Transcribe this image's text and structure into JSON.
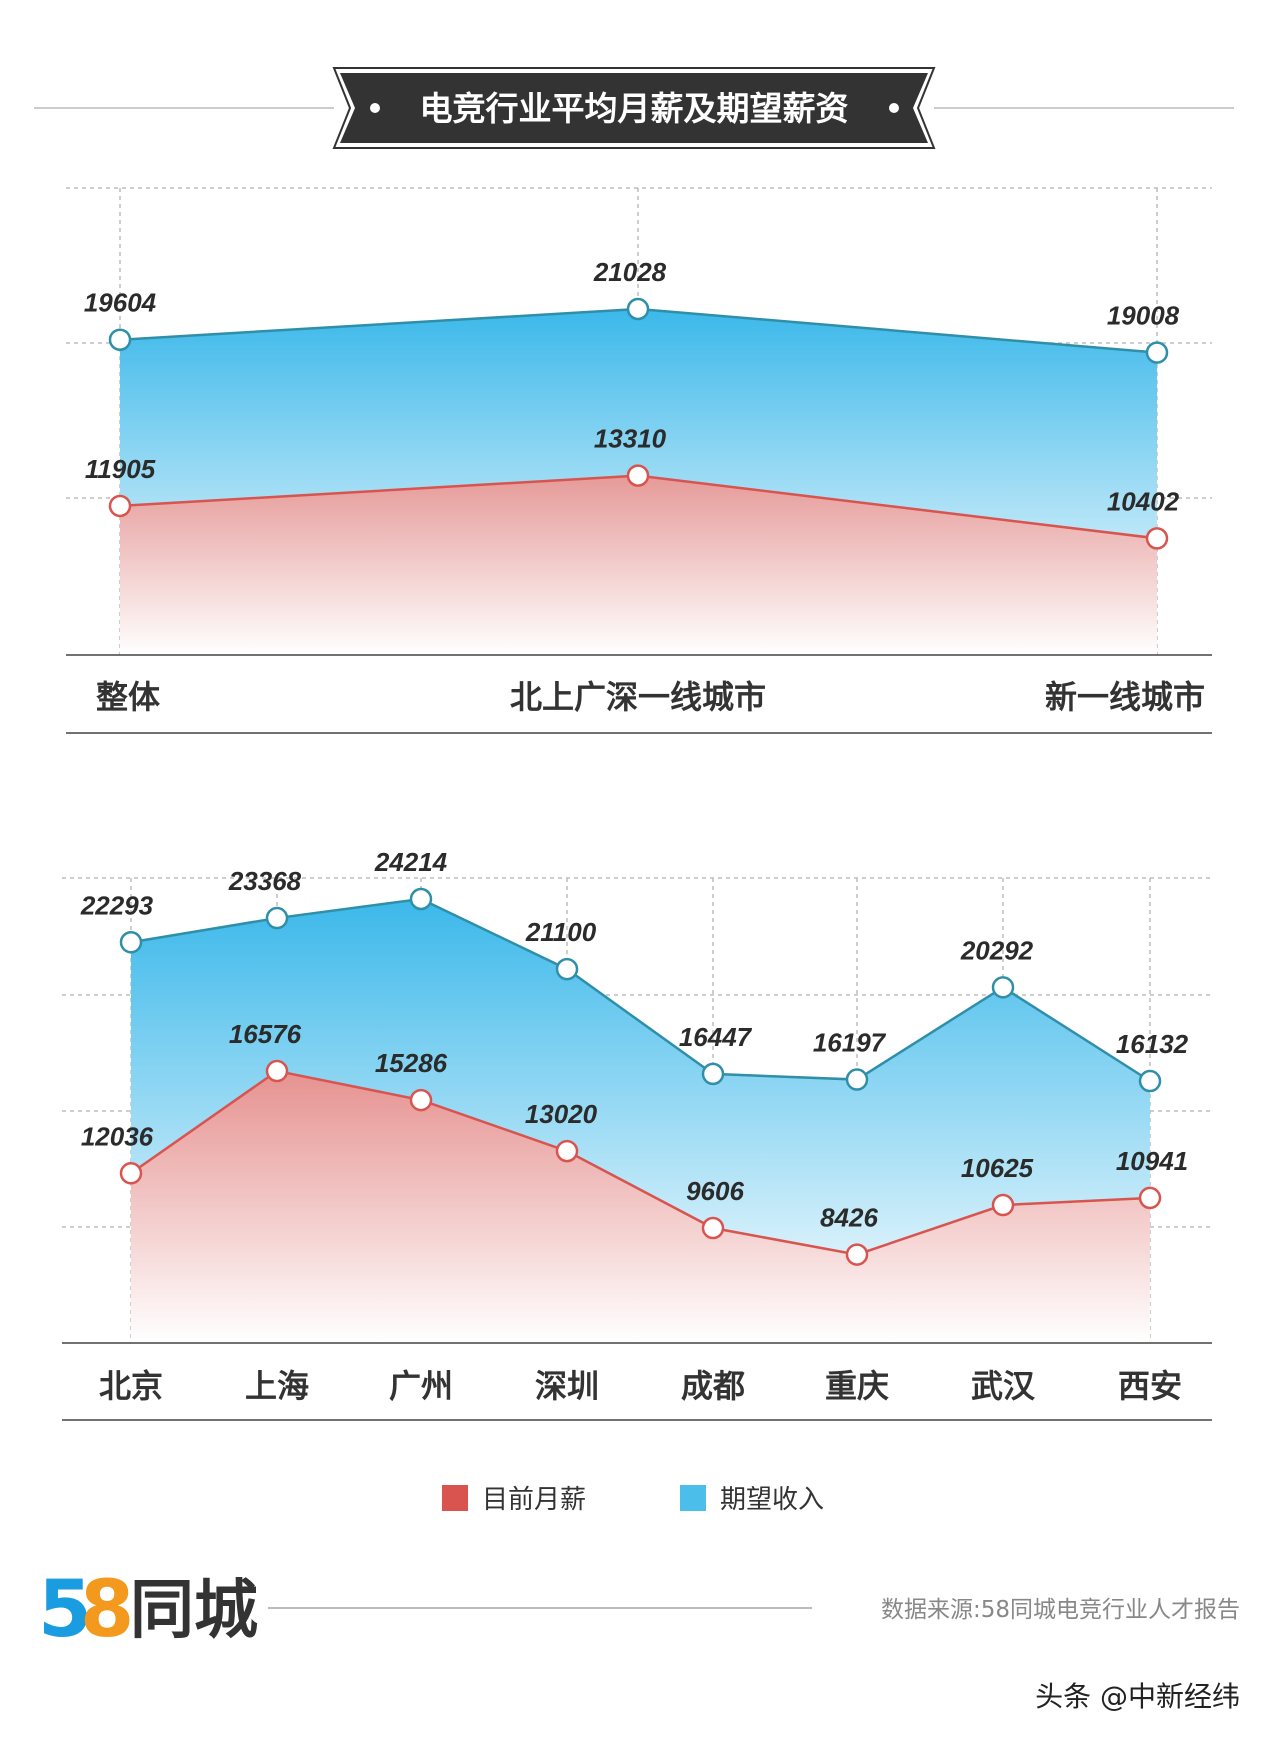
{
  "header": {
    "title": "电竞行业平均月薪及期望薪资"
  },
  "chart_data": [
    {
      "type": "area",
      "categories": [
        "整体",
        "北上广深一线城市",
        "新一线城市"
      ],
      "series": [
        {
          "name": "期望收入",
          "values": [
            19604,
            21028,
            19008
          ],
          "color": "#4bbfea"
        },
        {
          "name": "目前月薪",
          "values": [
            11905,
            13310,
            10402
          ],
          "color": "#d9534f"
        }
      ]
    },
    {
      "type": "area",
      "categories": [
        "北京",
        "上海",
        "广州",
        "深圳",
        "成都",
        "重庆",
        "武汉",
        "西安"
      ],
      "series": [
        {
          "name": "期望收入",
          "values": [
            22293,
            23368,
            24214,
            21100,
            16447,
            16197,
            20292,
            16132
          ],
          "color": "#4bbfea"
        },
        {
          "name": "目前月薪",
          "values": [
            12036,
            16576,
            15286,
            13020,
            9606,
            8426,
            10625,
            10941
          ],
          "color": "#d9534f"
        }
      ]
    }
  ],
  "legend": [
    {
      "label": "目前月薪",
      "color": "#d9534f"
    },
    {
      "label": "期望收入",
      "color": "#4bbfea"
    }
  ],
  "footer": {
    "logo_num_5": "5",
    "logo_num_8": "8",
    "logo_text": "同城",
    "source": "数据来源:58同城电竞行业人才报告",
    "watermark": "头条 @中新经纬"
  }
}
